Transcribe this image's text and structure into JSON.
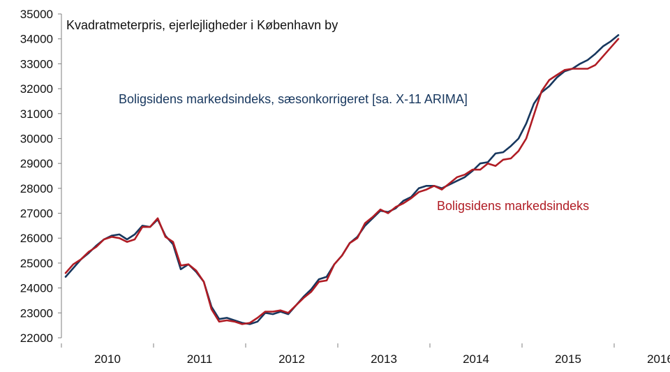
{
  "chart_data": {
    "type": "line",
    "title": "Kvadratmeterpris, ejerlejligheder i København by",
    "ylim": [
      22000,
      35000
    ],
    "y_ticks": [
      22000,
      23000,
      24000,
      25000,
      26000,
      27000,
      28000,
      29000,
      30000,
      31000,
      32000,
      33000,
      34000,
      35000
    ],
    "x_tick_labels": [
      "2010",
      "2011",
      "2012",
      "2013",
      "2014",
      "2015",
      "2016"
    ],
    "grid": false,
    "series": [
      {
        "name": "Boligsidens markedsindeks, sæsonkorrigeret [sa. X-11 ARIMA]",
        "color": "#17375e",
        "start": "2010-01",
        "values": [
          24450,
          24800,
          25150,
          25400,
          25700,
          25950,
          26100,
          26150,
          25950,
          26150,
          26500,
          26450,
          26750,
          26100,
          25750,
          24750,
          24950,
          24650,
          24250,
          23250,
          22750,
          22800,
          22700,
          22600,
          22550,
          22650,
          23000,
          22950,
          23050,
          22950,
          23300,
          23650,
          23950,
          24350,
          24450,
          24950,
          25300,
          25800,
          26050,
          26500,
          26800,
          27100,
          27050,
          27200,
          27500,
          27650,
          28000,
          28100,
          28100,
          28000,
          28150,
          28300,
          28450,
          28700,
          29000,
          29050,
          29400,
          29450,
          29700,
          30000,
          30600,
          31400,
          31850,
          32100,
          32450,
          32700,
          32800,
          33000,
          33150,
          33400,
          33700,
          33900,
          34150
        ]
      },
      {
        "name": "Boligsidens markedsindeks",
        "color": "#b01c24",
        "start": "2010-01",
        "values": [
          24600,
          24950,
          25150,
          25450,
          25650,
          25950,
          26050,
          26000,
          25850,
          25950,
          26450,
          26450,
          26800,
          26050,
          25850,
          24900,
          24950,
          24700,
          24250,
          23150,
          22650,
          22700,
          22650,
          22550,
          22600,
          22800,
          23050,
          23050,
          23100,
          23000,
          23300,
          23600,
          23850,
          24250,
          24300,
          24950,
          25300,
          25800,
          26000,
          26600,
          26850,
          27150,
          27000,
          27250,
          27400,
          27600,
          27850,
          27950,
          28100,
          27950,
          28200,
          28450,
          28550,
          28750,
          28750,
          29000,
          28900,
          29150,
          29200,
          29500,
          30000,
          30950,
          31900,
          32350,
          32550,
          32750,
          32800,
          32800,
          32800,
          32950,
          33300,
          33650,
          34000
        ]
      }
    ]
  },
  "series_labels": {
    "sa": "Boligsidens markedsindeks, sæsonkorrigeret [sa. X-11 ARIMA]",
    "raw": "Boligsidens markedsindeks"
  }
}
